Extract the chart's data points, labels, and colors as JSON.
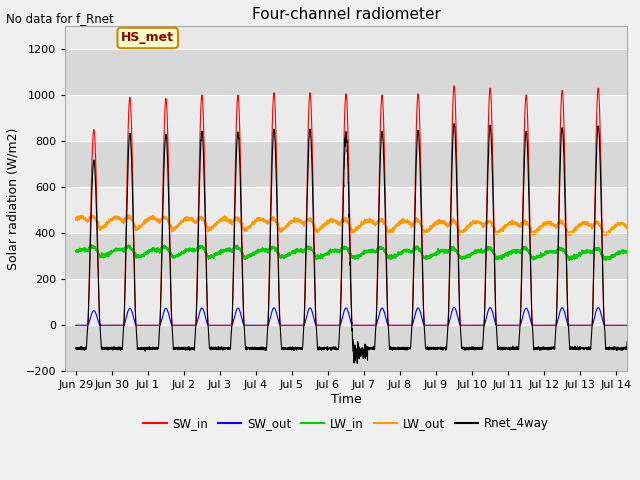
{
  "title": "Four-channel radiometer",
  "subtitle": "No data for f_Rnet",
  "ylabel": "Solar radiation (W/m2)",
  "xlabel": "Time",
  "ylim": [
    -200,
    1300
  ],
  "yticks": [
    -200,
    0,
    200,
    400,
    600,
    800,
    1000,
    1200
  ],
  "site_label": "HS_met",
  "legend": [
    "SW_in",
    "SW_out",
    "LW_in",
    "LW_out",
    "Rnet_4way"
  ],
  "colors": {
    "SW_in": "#ff0000",
    "SW_out": "#0000ff",
    "LW_in": "#00cc00",
    "LW_out": "#ff9900",
    "Rnet_4way": "#000000"
  },
  "x_tick_labels": [
    "Jun 29",
    "Jun 30",
    "Jul 1",
    "Jul 2",
    "Jul 3",
    "Jul 4",
    "Jul 5",
    "Jul 6",
    "Jul 7",
    "Jul 8",
    "Jul 9",
    "Jul 10",
    "Jul 11",
    "Jul 12",
    "Jul 13",
    "Jul 14"
  ],
  "n_days": 16,
  "figure_facecolor": "#f0f0f0",
  "axes_facecolor": "#e8e8e8",
  "band_light": "#ebebeb",
  "band_dark": "#d8d8d8",
  "grid_color": "#ffffff"
}
